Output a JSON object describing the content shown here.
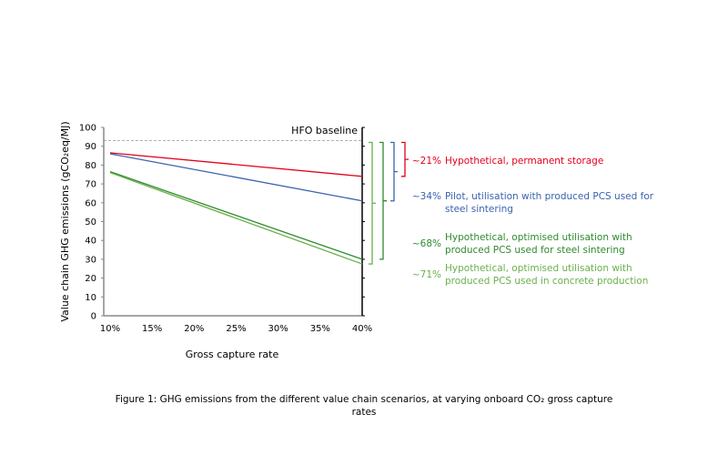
{
  "chart_data": {
    "type": "line",
    "xlabel": "Gross capture rate",
    "ylabel": "Value chain GHG emissions (gCO₂eq/MJ)",
    "x": [
      10,
      40
    ],
    "x_ticks": [
      "10%",
      "15%",
      "20%",
      "25%",
      "30%",
      "35%",
      "40%"
    ],
    "y_ticks": [
      "0",
      "10",
      "20",
      "30",
      "40",
      "50",
      "60",
      "70",
      "80",
      "90",
      "100"
    ],
    "xlim": [
      10,
      40
    ],
    "ylim": [
      0,
      100
    ],
    "grid": false,
    "baseline": {
      "label": "HFO baseline",
      "value": 93,
      "color": "#999999"
    },
    "series": [
      {
        "name": "Hypothetical, permanent storage",
        "values": [
          86.5,
          74
        ],
        "color": "#e3001b",
        "reduction": "~21%"
      },
      {
        "name": "Pilot, utilisation with produced PCS used for steel sintering",
        "values": [
          86,
          61
        ],
        "color": "#3a62b0",
        "reduction": "~34%"
      },
      {
        "name": "Hypothetical, optimised utilisation with produced PCS used for steel sintering",
        "values": [
          76.5,
          30
        ],
        "color": "#2e8a2e",
        "reduction": "~68%"
      },
      {
        "name": "Hypothetical, optimised utilisation with produced PCS used in concrete production",
        "values": [
          76,
          27.5
        ],
        "color": "#6ab04c",
        "reduction": "~71%"
      }
    ]
  },
  "caption": "Figure 1: GHG emissions from the different value chain scenarios, at varying onboard CO₂ gross capture rates"
}
